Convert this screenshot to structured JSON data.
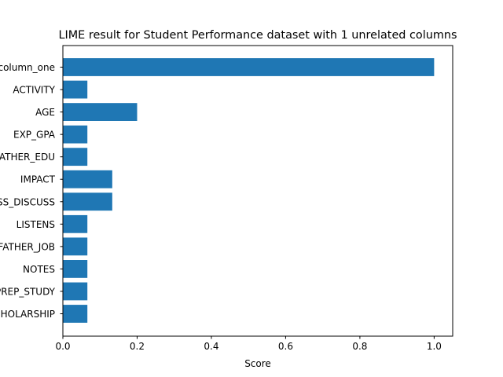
{
  "chart_data": {
    "type": "bar",
    "orientation": "horizontal",
    "title": "LIME result for Student Performance dataset with 1 unrelated columns",
    "xlabel": "Score",
    "ylabel": "",
    "categories": [
      "column_one",
      "ACTIVITY",
      "AGE",
      "EXP_GPA",
      "FATHER_EDU",
      "IMPACT",
      "CLASS_DISCUSS",
      "LISTENS",
      "FATHER_JOB",
      "NOTES",
      "PREP_STUDY",
      "SCHOLARSHIP"
    ],
    "values": [
      1.0,
      0.066,
      0.2,
      0.066,
      0.066,
      0.133,
      0.133,
      0.066,
      0.066,
      0.066,
      0.066,
      0.066
    ],
    "xlim": [
      0,
      1.05
    ],
    "xticks": [
      "0.0",
      "0.2",
      "0.4",
      "0.6",
      "0.8",
      "1.0"
    ],
    "xtick_values": [
      0,
      0.2,
      0.4,
      0.6,
      0.8,
      1.0
    ],
    "bar_color": "#1f77b4",
    "grid": false,
    "legend": "none"
  }
}
